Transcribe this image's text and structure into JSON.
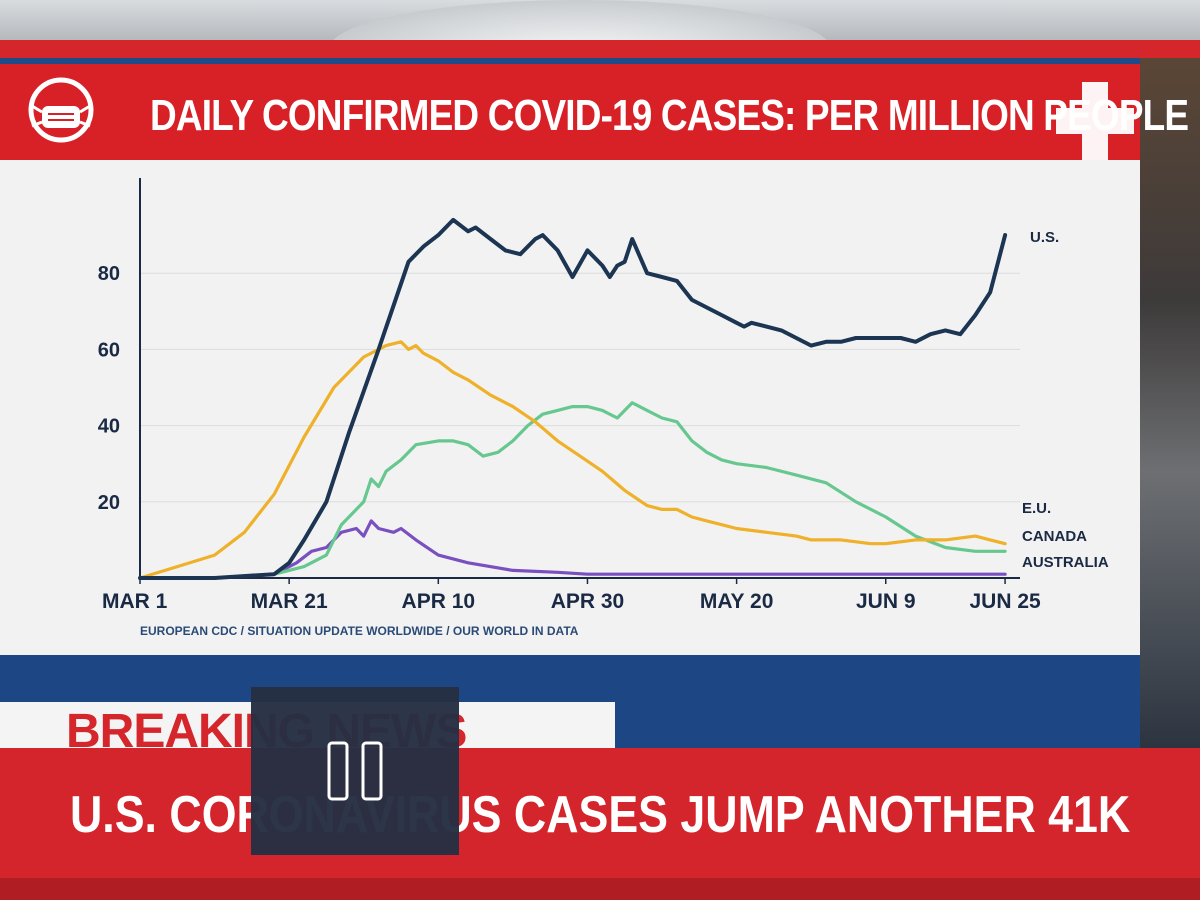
{
  "header": {
    "title": "DAILY CONFIRMED COVID-19 CASES: PER MILLION PEOPLE",
    "mask_icon": "face-mask-icon",
    "cross_icon": "medical-cross-icon"
  },
  "source": "EUROPEAN CDC / SITUATION UPDATE WORLDWIDE / OUR WORLD IN DATA",
  "ticker": {
    "breaking": "BREAKING NEWS",
    "headline": "U.S. CORONAVIRUS CASES JUMP ANOTHER 41K"
  },
  "overlay": {
    "icon": "pause-icon"
  },
  "colors": {
    "brand_red": "#d82027",
    "brand_blue": "#1e4c8a",
    "us": "#1c3552",
    "eu": "#efb02a",
    "canada": "#66c78f",
    "australia": "#7a4fc0"
  },
  "chart_data": {
    "type": "line",
    "title": "DAILY CONFIRMED COVID-19 CASES: PER MILLION PEOPLE",
    "xlabel": "",
    "ylabel": "",
    "x_ticks": [
      "MAR 1",
      "MAR 21",
      "APR 10",
      "APR 30",
      "MAY 20",
      "JUN 9",
      "JUN 25"
    ],
    "x_tick_days": [
      0,
      20,
      40,
      60,
      80,
      100,
      116
    ],
    "y_ticks": [
      20,
      40,
      60,
      80
    ],
    "xlim": [
      0,
      118
    ],
    "ylim": [
      0,
      105
    ],
    "grid": true,
    "series": [
      {
        "name": "U.S.",
        "color": "#1c3552",
        "x": [
          0,
          10,
          18,
          20,
          22,
          25,
          28,
          32,
          36,
          38,
          40,
          42,
          44,
          45,
          47,
          49,
          51,
          53,
          54,
          56,
          58,
          60,
          62,
          63,
          64,
          65,
          66,
          68,
          70,
          72,
          74,
          76,
          78,
          80,
          81,
          82,
          84,
          86,
          88,
          90,
          92,
          94,
          96,
          98,
          100,
          102,
          104,
          106,
          108,
          110,
          112,
          114,
          116
        ],
        "y": [
          0,
          0,
          1,
          4,
          10,
          20,
          38,
          60,
          83,
          87,
          90,
          94,
          91,
          92,
          89,
          86,
          85,
          89,
          90,
          86,
          79,
          86,
          82,
          79,
          82,
          83,
          89,
          80,
          79,
          78,
          73,
          71,
          69,
          67,
          66,
          67,
          66,
          65,
          63,
          61,
          62,
          62,
          63,
          63,
          63,
          63,
          62,
          64,
          65,
          64,
          69,
          75,
          90
        ]
      },
      {
        "name": "E.U.",
        "color": "#efb02a",
        "x": [
          0,
          5,
          10,
          14,
          18,
          22,
          26,
          30,
          33,
          35,
          36,
          37,
          38,
          40,
          42,
          44,
          47,
          50,
          53,
          56,
          59,
          62,
          65,
          68,
          70,
          72,
          74,
          76,
          78,
          80,
          84,
          88,
          90,
          94,
          98,
          100,
          104,
          108,
          112,
          114,
          116
        ],
        "y": [
          0,
          3,
          6,
          12,
          22,
          37,
          50,
          58,
          61,
          62,
          60,
          61,
          59,
          57,
          54,
          52,
          48,
          45,
          41,
          36,
          32,
          28,
          23,
          19,
          18,
          18,
          16,
          15,
          14,
          13,
          12,
          11,
          10,
          10,
          9,
          9,
          10,
          10,
          11,
          10,
          9
        ]
      },
      {
        "name": "CANADA",
        "color": "#66c78f",
        "x": [
          0,
          10,
          18,
          22,
          25,
          27,
          30,
          31,
          32,
          33,
          35,
          37,
          40,
          42,
          44,
          46,
          48,
          50,
          52,
          54,
          56,
          58,
          60,
          62,
          64,
          66,
          68,
          70,
          72,
          74,
          76,
          78,
          80,
          84,
          88,
          92,
          96,
          100,
          104,
          108,
          112,
          116
        ],
        "y": [
          0,
          0,
          1,
          3,
          6,
          14,
          20,
          26,
          24,
          28,
          31,
          35,
          36,
          36,
          35,
          32,
          33,
          36,
          40,
          43,
          44,
          45,
          45,
          44,
          42,
          46,
          44,
          42,
          41,
          36,
          33,
          31,
          30,
          29,
          27,
          25,
          20,
          16,
          11,
          8,
          7,
          7
        ]
      },
      {
        "name": "AUSTRALIA",
        "color": "#7a4fc0",
        "x": [
          0,
          10,
          18,
          21,
          23,
          25,
          27,
          29,
          30,
          31,
          32,
          34,
          35,
          37,
          40,
          44,
          50,
          56,
          60,
          70,
          80,
          90,
          100,
          110,
          116
        ],
        "y": [
          0,
          0,
          1,
          4,
          7,
          8,
          12,
          13,
          11,
          15,
          13,
          12,
          13,
          10,
          6,
          4,
          2,
          1.5,
          1,
          1,
          1,
          1,
          1,
          1,
          1
        ]
      }
    ]
  }
}
